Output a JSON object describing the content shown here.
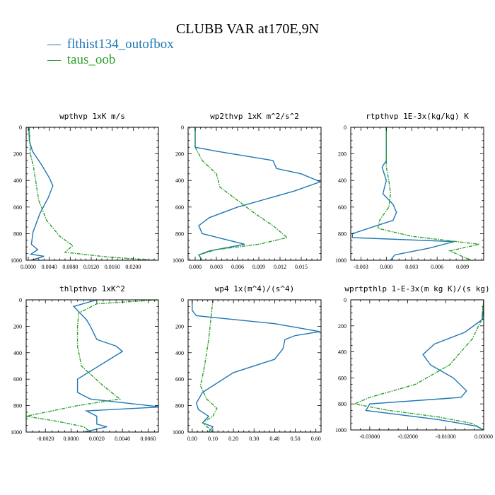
{
  "figure": {
    "title": "CLUBB VAR at170E,9N",
    "legend": [
      {
        "label": "flthist134_outofbox",
        "color": "#1f77b4",
        "symbol": "—"
      },
      {
        "label": "taus_oob",
        "color": "#2ca02c",
        "symbol": "—"
      }
    ]
  },
  "chart_data": [
    {
      "type": "line",
      "title": "wpthvp  1xK m/s",
      "xlim": [
        -0.0004,
        0.0248
      ],
      "ylim": [
        1000,
        0
      ],
      "xticks": [
        0.0,
        0.004,
        0.008,
        0.012,
        0.016,
        0.02
      ],
      "xtick_labels": [
        "0.0000",
        "0.0040",
        "0.0080",
        "0.0120",
        "0.0160",
        "0.0200"
      ],
      "yticks": [
        0,
        200,
        400,
        600,
        800,
        1000
      ],
      "ytick_labels": [
        "0",
        "200",
        "400",
        "600",
        "800",
        "1000"
      ],
      "series": [
        {
          "name": "flthist134_outofbox",
          "x": [
            0.0001,
            0.0002,
            0.0008,
            0.0025,
            0.004,
            0.0047,
            0.0038,
            0.0022,
            0.0009,
            0.0006,
            0.0018,
            0.0005,
            0.003,
            0.0005
          ],
          "y": [
            0,
            100,
            180,
            280,
            380,
            440,
            530,
            650,
            790,
            880,
            920,
            955,
            970,
            1000
          ]
        },
        {
          "name": "taus_oob",
          "x": [
            0.0002,
            0.0003,
            0.0004,
            0.001,
            0.0014,
            0.002,
            0.0035,
            0.006,
            0.0085,
            0.007,
            0.015,
            0.024
          ],
          "y": [
            0,
            100,
            200,
            300,
            400,
            550,
            700,
            820,
            890,
            940,
            975,
            1000
          ]
        }
      ]
    },
    {
      "type": "line",
      "title": "wp2thvp  1xK m^2/s^2",
      "xlim": [
        -0.001,
        0.0178
      ],
      "ylim": [
        1000,
        0
      ],
      "xticks": [
        0.0,
        0.003,
        0.006,
        0.009,
        0.012,
        0.015
      ],
      "xtick_labels": [
        "0.000",
        "0.003",
        "0.006",
        "0.009",
        "0.012",
        "0.015"
      ],
      "yticks": [
        0,
        200,
        400,
        600,
        800,
        1000
      ],
      "ytick_labels": [
        "0",
        "200",
        "400",
        "600",
        "800",
        "1000"
      ],
      "series": [
        {
          "name": "flthist134_outofbox",
          "x": [
            0.0,
            0.0,
            0.003,
            0.011,
            0.0115,
            0.015,
            0.0177,
            0.014,
            0.006,
            0.002,
            0.0005,
            0.001,
            0.004,
            0.007,
            0.002,
            0.0005,
            0.001
          ],
          "y": [
            0,
            150,
            180,
            250,
            310,
            350,
            410,
            480,
            600,
            680,
            740,
            800,
            840,
            880,
            930,
            960,
            1000
          ]
        },
        {
          "name": "taus_oob",
          "x": [
            0.0,
            0.0,
            0.001,
            0.003,
            0.0035,
            0.006,
            0.0085,
            0.011,
            0.013,
            0.009,
            0.003,
            0.0005,
            0.001
          ],
          "y": [
            0,
            150,
            250,
            350,
            450,
            550,
            650,
            740,
            830,
            880,
            920,
            960,
            1000
          ]
        }
      ]
    },
    {
      "type": "line",
      "title": "rtpthvp   1E-3x(kg/kg) K",
      "xlim": [
        -0.0042,
        0.0115
      ],
      "ylim": [
        1000,
        0
      ],
      "xticks": [
        -0.003,
        0.0,
        0.003,
        0.006,
        0.009
      ],
      "xtick_labels": [
        "-0.003",
        "0.000",
        "0.003",
        "0.006",
        "0.009"
      ],
      "yticks": [
        0,
        200,
        400,
        600,
        800,
        1000
      ],
      "ytick_labels": [
        "0",
        "200",
        "400",
        "600",
        "800",
        "1000"
      ],
      "series": [
        {
          "name": "flthist134_outofbox",
          "x": [
            0.0,
            0.0,
            -0.0005,
            0.0,
            -0.0004,
            0.0008,
            0.0012,
            0.0008,
            -0.004,
            -0.004,
            0.008,
            0.005,
            0.001,
            0.0005
          ],
          "y": [
            0,
            250,
            300,
            400,
            500,
            580,
            640,
            700,
            800,
            830,
            860,
            910,
            960,
            1000
          ]
        },
        {
          "name": "taus_oob",
          "x": [
            0.0,
            0.0,
            0.0003,
            0.0005,
            0.0003,
            -0.0008,
            -0.001,
            0.003,
            0.011,
            0.0075,
            0.01
          ],
          "y": [
            0,
            300,
            400,
            500,
            600,
            700,
            760,
            820,
            880,
            930,
            1000
          ]
        }
      ]
    },
    {
      "type": "line",
      "title": "thlpthvp   1xK^2",
      "xlim": [
        -0.0035,
        0.0068
      ],
      "ylim": [
        1000,
        0
      ],
      "xticks": [
        -0.002,
        0.0,
        0.002,
        0.004,
        0.006
      ],
      "xtick_labels": [
        "-0.0020",
        "0.0000",
        "0.0020",
        "0.0040",
        "0.0060"
      ],
      "yticks": [
        0,
        200,
        400,
        600,
        800,
        1000
      ],
      "ytick_labels": [
        "0",
        "200",
        "400",
        "600",
        "800",
        "1000"
      ],
      "series": [
        {
          "name": "flthist134_outofbox",
          "x": [
            0.002,
            0.0002,
            0.0012,
            0.0015,
            0.002,
            0.0035,
            0.004,
            0.003,
            0.0005,
            0.0005,
            0.0015,
            0.007,
            0.0012,
            0.002,
            0.002,
            0.0028,
            0.001
          ],
          "y": [
            0,
            50,
            150,
            200,
            300,
            350,
            390,
            450,
            600,
            700,
            750,
            810,
            840,
            880,
            940,
            960,
            1000
          ]
        },
        {
          "name": "taus_oob",
          "x": [
            0.0068,
            0.002,
            0.0006,
            0.0005,
            0.0005,
            0.0008,
            0.0025,
            0.0038,
            0.0005,
            -0.0035,
            -0.001,
            0.001,
            0.0015
          ],
          "y": [
            0,
            30,
            100,
            200,
            350,
            500,
            650,
            750,
            800,
            880,
            920,
            960,
            1000
          ]
        }
      ]
    },
    {
      "type": "line",
      "title": "wp4   1x(m^4)/(s^4)",
      "xlim": [
        -0.02,
        0.625
      ],
      "ylim": [
        1000,
        0
      ],
      "xticks": [
        0.0,
        0.1,
        0.2,
        0.3,
        0.4,
        0.5,
        0.6
      ],
      "xtick_labels": [
        "0.00",
        "0.10",
        "0.20",
        "0.30",
        "0.40",
        "0.50",
        "0.60"
      ],
      "yticks": [
        0,
        200,
        400,
        600,
        800,
        1000
      ],
      "ytick_labels": [
        "0",
        "200",
        "400",
        "600",
        "800",
        "1000"
      ],
      "series": [
        {
          "name": "flthist134_outofbox",
          "x": [
            0.0,
            0.0,
            0.02,
            0.4,
            0.62,
            0.5,
            0.45,
            0.44,
            0.4,
            0.2,
            0.05,
            0.02,
            0.03,
            0.08,
            0.05,
            0.1,
            0.08
          ],
          "y": [
            0,
            80,
            120,
            180,
            240,
            270,
            300,
            370,
            450,
            550,
            700,
            780,
            830,
            880,
            930,
            960,
            1000
          ]
        },
        {
          "name": "taus_oob",
          "x": [
            0.1,
            0.09,
            0.08,
            0.06,
            0.04,
            0.07,
            0.12,
            0.1,
            0.05,
            0.08,
            0.1
          ],
          "y": [
            0,
            150,
            300,
            500,
            650,
            750,
            820,
            880,
            930,
            970,
            1000
          ]
        }
      ]
    },
    {
      "type": "line",
      "title": "wprtpthlp   1-E-3x(m kg K)/(s kg)",
      "xlim": [
        -0.035,
        0.0
      ],
      "ylim": [
        1000,
        0
      ],
      "xticks": [
        -0.03,
        -0.02,
        -0.01,
        0.0
      ],
      "xtick_labels": [
        "-0.03000",
        "-0.02000",
        "-0.01000",
        "0.00000"
      ],
      "yticks": [
        0,
        200,
        400,
        600,
        800,
        1000
      ],
      "ytick_labels": [
        "0",
        "200",
        "400",
        "600",
        "800",
        "1000"
      ],
      "series": [
        {
          "name": "flthist134_outofbox",
          "x": [
            0.0,
            -0.0003,
            -0.005,
            -0.013,
            -0.016,
            -0.014,
            -0.008,
            -0.0045,
            -0.006,
            -0.03,
            -0.031,
            -0.012,
            -0.002,
            0.0
          ],
          "y": [
            0,
            150,
            250,
            340,
            420,
            500,
            600,
            700,
            750,
            800,
            850,
            920,
            970,
            1000
          ]
        },
        {
          "name": "taus_oob",
          "x": [
            0.0,
            -0.0005,
            -0.003,
            -0.009,
            -0.018,
            -0.03,
            -0.034,
            -0.025,
            -0.012,
            -0.003,
            0.0
          ],
          "y": [
            0,
            150,
            300,
            500,
            650,
            750,
            800,
            850,
            900,
            950,
            1000
          ]
        }
      ]
    }
  ]
}
